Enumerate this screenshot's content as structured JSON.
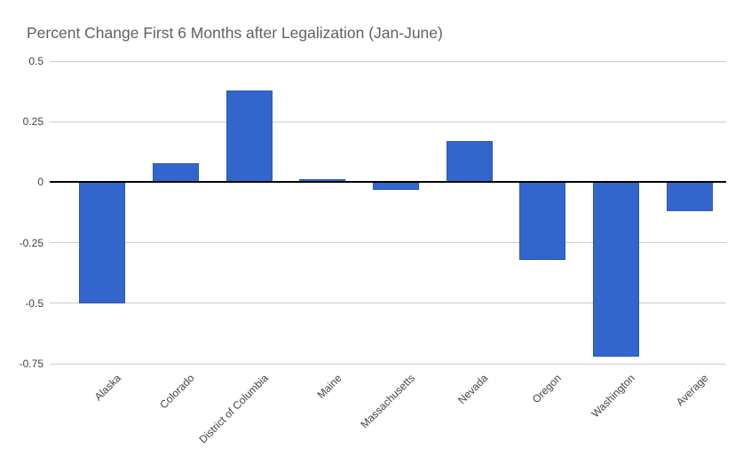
{
  "chart_data": {
    "type": "bar",
    "title": "Percent Change First 6 Months after Legalization (Jan-June)",
    "categories": [
      "Alaska",
      "Colorado",
      "District of Columbia",
      "Maine",
      "Massachusetts",
      "Nevada",
      "Oregon",
      "Washington",
      "Average"
    ],
    "values": [
      -0.5,
      0.08,
      0.38,
      0,
      -0.03,
      0.17,
      -0.32,
      -0.72,
      -0.12
    ],
    "xlabel": "",
    "ylabel": "",
    "ylim": [
      -0.75,
      0.5
    ],
    "yticks": [
      0.5,
      0.25,
      0,
      -0.25,
      -0.5,
      -0.75
    ],
    "ytick_labels": [
      "0.5",
      "0.25",
      "0",
      "-0.25",
      "-0.5",
      "-0.75"
    ],
    "grid": true,
    "legend_position": "none",
    "colors": {
      "bar_fill": "#3366cc",
      "bar_border": "#2a57b8",
      "gridline": "#cccccc",
      "zero_line": "#000000",
      "title_text": "#616161",
      "axis_text": "#444444",
      "background": "#ffffff"
    }
  }
}
